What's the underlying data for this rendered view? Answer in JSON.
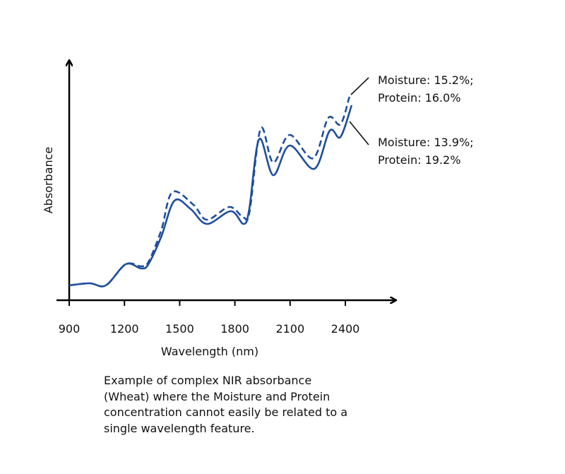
{
  "chart_data": {
    "type": "line",
    "title": "",
    "xlabel": "Wavelength (nm)",
    "ylabel": "Absorbance",
    "xlim": [
      900,
      2500
    ],
    "ylim": [
      0,
      1.1
    ],
    "xticks": [
      "900",
      "1200",
      "1500",
      "1800",
      "2100",
      "2400"
    ],
    "xtick_values": [
      900,
      1200,
      1500,
      1800,
      2100,
      2400
    ],
    "grid": false,
    "series": [
      {
        "name": "Moisture: 15.2%; Protein: 16.0%",
        "label_lines": [
          "Moisture: 15.2%;",
          "Protein: 16.0%"
        ],
        "style": "dashed",
        "color": "#1f4e9c",
        "x": [
          900,
          1011,
          1099,
          1207,
          1291,
          1330,
          1400,
          1460,
          1575,
          1648,
          1770,
          1847,
          1880,
          1940,
          2008,
          2097,
          2225,
          2307,
          2373,
          2422
        ],
        "y": [
          0.07,
          0.08,
          0.07,
          0.17,
          0.16,
          0.18,
          0.33,
          0.51,
          0.45,
          0.38,
          0.44,
          0.39,
          0.42,
          0.81,
          0.65,
          0.78,
          0.67,
          0.86,
          0.83,
          0.96
        ]
      },
      {
        "name": "Moisture: 13.9%; Protein: 19.2%",
        "label_lines": [
          "Moisture: 13.9%;",
          "Protein: 19.2%"
        ],
        "style": "solid",
        "color": "#1f4e9c",
        "x": [
          900,
          1011,
          1099,
          1207,
          1291,
          1330,
          1400,
          1472,
          1560,
          1648,
          1778,
          1847,
          1878,
          1932,
          2008,
          2097,
          2231,
          2315,
          2373,
          2434
        ],
        "y": [
          0.07,
          0.08,
          0.07,
          0.17,
          0.15,
          0.17,
          0.3,
          0.47,
          0.43,
          0.36,
          0.42,
          0.36,
          0.43,
          0.76,
          0.59,
          0.73,
          0.62,
          0.8,
          0.77,
          0.92
        ]
      }
    ]
  },
  "caption": [
    "Example of complex NIR absorbance",
    "(Wheat) where the Moisture and Protein",
    "concentration cannot easily be related to a",
    "single wavelength feature."
  ]
}
